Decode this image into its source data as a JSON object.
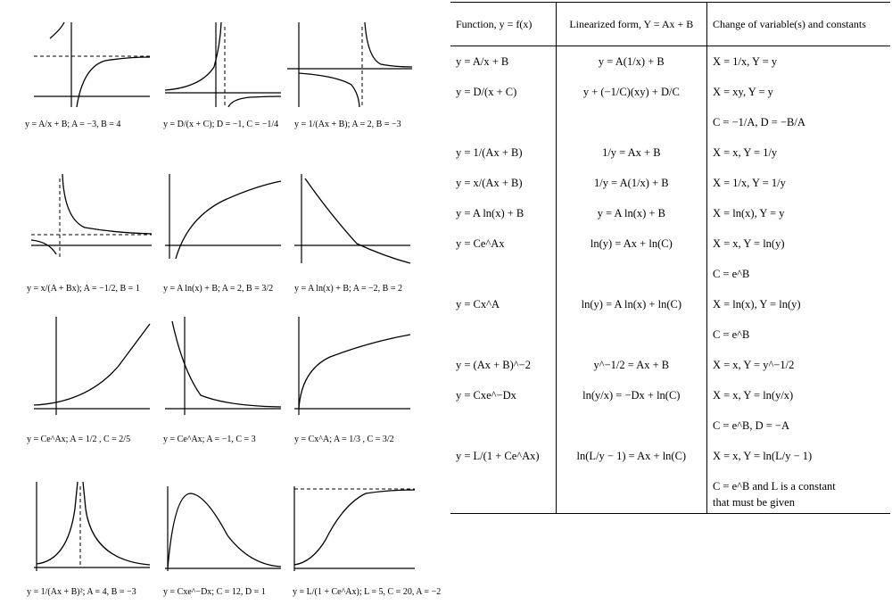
{
  "plots": [
    {
      "id": "p1",
      "caption": "y = A/x + B;  A = −3, B = 4"
    },
    {
      "id": "p2",
      "caption": "y = D/(x + C);  D = −1, C = −1/4"
    },
    {
      "id": "p3",
      "caption": "y = 1/(Ax + B);  A = 2, B = −3"
    },
    {
      "id": "p4",
      "caption": "y = x/(A + Bx);  A = −1/2, B = 1"
    },
    {
      "id": "p5",
      "caption": "y = A ln(x) + B; A = 2, B = 3/2"
    },
    {
      "id": "p6",
      "caption": "y = A ln(x) + B; A = −2, B = 2"
    },
    {
      "id": "p7",
      "caption": "y = Ce^Ax;  A = 1/2 , C = 2/5"
    },
    {
      "id": "p8",
      "caption": "y = Ce^Ax;  A = −1, C = 3"
    },
    {
      "id": "p9",
      "caption": "y = Cx^A;  A = 1/3 , C = 3/2"
    },
    {
      "id": "p10",
      "caption": "y = 1/(Ax + B)²; A = 4, B = −3"
    },
    {
      "id": "p11",
      "caption": "y = Cxe^−Dx; C = 12, D = 1"
    },
    {
      "id": "p12",
      "caption": "y = L/(1 + Ce^Ax);  L = 5, C = 20, A = −2"
    }
  ],
  "table": {
    "headers": [
      "Function, y = f(x)",
      "Linearized form, Y = Ax + B",
      "Change of variable(s) and constants"
    ],
    "rows": [
      [
        "y = A/x + B",
        "y = A(1/x) + B",
        "X = 1/x, Y = y"
      ],
      [
        "y = D/(x + C)",
        "y + (−1/C)(xy) + D/C",
        "X = xy, Y = y"
      ],
      [
        "",
        "",
        "C = −1/A, D = −B/A"
      ],
      [
        "y = 1/(Ax + B)",
        "1/y = Ax + B",
        "X = x, Y = 1/y"
      ],
      [
        "y = x/(Ax + B)",
        "1/y = A(1/x) + B",
        "X = 1/x, Y = 1/y"
      ],
      [
        "y = A ln(x) + B",
        "y = A ln(x) + B",
        "X = ln(x), Y = y"
      ],
      [
        "y = Ce^Ax",
        "ln(y) = Ax + ln(C)",
        "X = x, Y = ln(y)"
      ],
      [
        "",
        "",
        "C = e^B"
      ],
      [
        "y = Cx^A",
        "ln(y) = A ln(x) + ln(C)",
        "X = ln(x), Y = ln(y)"
      ],
      [
        "",
        "",
        "C = e^B"
      ],
      [
        "y = (Ax + B)^−2",
        "y^−1/2 = Ax + B",
        "X = x, Y = y^−1/2"
      ],
      [
        "y = Cxe^−Dx",
        "ln(y/x) = −Dx + ln(C)",
        "X = x, Y = ln(y/x)"
      ],
      [
        "",
        "",
        "C = e^B, D = −A"
      ],
      [
        "y = L/(1 + Ce^Ax)",
        "ln(L/y − 1) = Ax + ln(C)",
        "X = x, Y = ln(L/y − 1)"
      ],
      [
        "",
        "",
        "C = e^B and L is a constant"
      ],
      [
        "",
        "",
        "that must be given"
      ]
    ]
  }
}
